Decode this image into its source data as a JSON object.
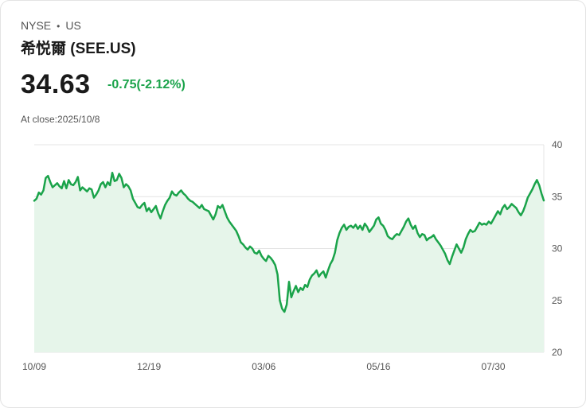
{
  "header": {
    "exchange": "NYSE",
    "separator": "•",
    "market": "US",
    "title": "希悦爾 (SEE.US)"
  },
  "quote": {
    "price": "34.63",
    "change": "-0.75(-2.12%)",
    "close_label": "At close:2025/10/8"
  },
  "colors": {
    "line": "#1aa34a",
    "fill": "#e6f5ea",
    "grid": "#e4e4e4",
    "change": "#1aa34a"
  },
  "chart_data": {
    "type": "area",
    "title": "",
    "xlabel": "",
    "ylabel": "",
    "ylim": [
      20,
      40
    ],
    "y_ticks": [
      40,
      35,
      30,
      25,
      20
    ],
    "x_tick_labels": [
      {
        "label": "10/09",
        "index": 0
      },
      {
        "label": "12/19",
        "index": 50
      },
      {
        "label": "03/06",
        "index": 100
      },
      {
        "label": "05/16",
        "index": 150
      },
      {
        "label": "07/30",
        "index": 200
      }
    ],
    "grid": true,
    "series": [
      {
        "name": "SEE.US close",
        "values": [
          34.6,
          34.8,
          35.4,
          35.2,
          35.6,
          36.8,
          37.0,
          36.4,
          35.9,
          36.1,
          36.3,
          36.0,
          35.8,
          36.5,
          35.8,
          36.6,
          36.2,
          36.1,
          36.4,
          36.9,
          35.6,
          35.9,
          35.7,
          35.5,
          35.8,
          35.7,
          34.9,
          35.2,
          35.6,
          36.2,
          36.4,
          35.9,
          36.4,
          36.1,
          37.3,
          36.5,
          36.6,
          37.2,
          36.8,
          35.9,
          36.2,
          36.0,
          35.6,
          34.8,
          34.4,
          34.0,
          33.9,
          34.2,
          34.4,
          33.6,
          33.9,
          33.5,
          33.8,
          34.1,
          33.4,
          32.9,
          33.6,
          34.2,
          34.6,
          34.9,
          35.5,
          35.2,
          35.1,
          35.4,
          35.6,
          35.3,
          35.1,
          34.8,
          34.6,
          34.5,
          34.3,
          34.1,
          33.9,
          34.2,
          33.8,
          33.7,
          33.6,
          33.2,
          32.8,
          33.3,
          34.1,
          33.9,
          34.2,
          33.6,
          33.0,
          32.6,
          32.3,
          32.0,
          31.7,
          31.2,
          30.6,
          30.4,
          30.1,
          29.9,
          30.2,
          30.0,
          29.6,
          29.5,
          29.8,
          29.3,
          29.0,
          28.8,
          29.3,
          29.1,
          28.8,
          28.4,
          27.5,
          25.0,
          24.2,
          23.9,
          24.6,
          26.8,
          25.3,
          25.9,
          26.4,
          25.8,
          26.2,
          26.0,
          26.5,
          26.3,
          27.0,
          27.4,
          27.6,
          27.9,
          27.3,
          27.6,
          27.8,
          27.2,
          27.9,
          28.5,
          28.9,
          29.6,
          30.8,
          31.5,
          32.0,
          32.3,
          31.8,
          32.1,
          32.2,
          32.0,
          32.3,
          31.9,
          32.2,
          31.8,
          32.4,
          32.1,
          31.6,
          31.9,
          32.2,
          32.8,
          33.0,
          32.4,
          32.2,
          31.8,
          31.2,
          31.0,
          30.9,
          31.2,
          31.4,
          31.3,
          31.7,
          32.1,
          32.6,
          32.9,
          32.3,
          31.9,
          32.2,
          31.5,
          31.1,
          31.4,
          31.3,
          30.8,
          31.0,
          31.1,
          31.3,
          30.9,
          30.6,
          30.3,
          29.9,
          29.5,
          28.9,
          28.5,
          29.2,
          29.8,
          30.4,
          30.0,
          29.6,
          30.1,
          30.9,
          31.4,
          31.8,
          31.6,
          31.7,
          32.1,
          32.5,
          32.3,
          32.4,
          32.3,
          32.6,
          32.4,
          32.8,
          33.2,
          33.6,
          33.3,
          33.9,
          34.2,
          33.8,
          34.0,
          34.3,
          34.1,
          33.9,
          33.5,
          33.2,
          33.6,
          34.2,
          34.9,
          35.3,
          35.7,
          36.2,
          36.6,
          36.1,
          35.3,
          34.63
        ]
      }
    ]
  }
}
